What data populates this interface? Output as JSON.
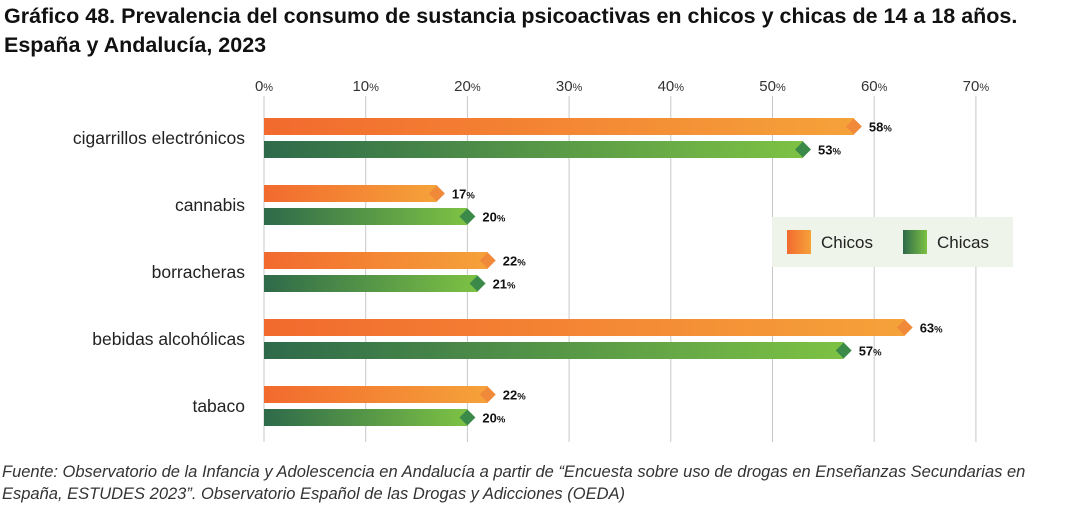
{
  "title": "Gráfico 48. Prevalencia del consumo de sustancia psicoactivas en chicos y chicas de 14 a 18 años. España y Andalucía, 2023",
  "source": "Fuente: Observatorio de la Infancia y Adolescencia en Andalucía a partir de “Encuesta sobre uso de drogas en Enseñanzas Secundarias en España, ESTUDES 2023”. Observatorio Español de las Drogas y Adicciones (OEDA)",
  "chart_data": {
    "type": "bar",
    "orientation": "horizontal",
    "title": "Gráfico 48. Prevalencia del consumo de sustancia psicoactivas en chicos y chicas de 14 a 18 años. España y Andalucía, 2023",
    "categories": [
      "cigarrillos electrónicos",
      "cannabis",
      "borracheras",
      "bebidas alcohólicas",
      "tabaco"
    ],
    "series": [
      {
        "name": "Chicos",
        "values": [
          58,
          17,
          22,
          63,
          22
        ],
        "color_start": "#f26a2e",
        "color_end": "#f5a23a",
        "marker": "#f08a3a"
      },
      {
        "name": "Chicas",
        "values": [
          53,
          20,
          21,
          57,
          20
        ],
        "color_start": "#2e6a4a",
        "color_end": "#7dc244",
        "marker": "#3b8a4a"
      }
    ],
    "x_ticks": [
      0,
      10,
      20,
      30,
      40,
      50,
      60,
      70
    ],
    "xlim": [
      0,
      70
    ],
    "tick_unit": "%",
    "value_unit": "%",
    "legend_position": "right",
    "grid": true
  },
  "colors": {
    "grid": "#c8c8c8",
    "legend_bg": "#eef4ea"
  }
}
